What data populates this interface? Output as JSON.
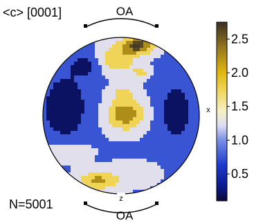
{
  "chart_data": {
    "type": "heatmap",
    "subtype": "pole-figure",
    "title": "<c> [0001]",
    "sample_size_label": "N=5001",
    "arc_labels": {
      "top": "OA",
      "bottom": "OA"
    },
    "axis_labels": {
      "x": "x",
      "z": "z"
    },
    "colorbar": {
      "ticks": [
        0.5,
        1.0,
        1.5,
        2.0,
        2.5
      ],
      "tick_labels": [
        "0.5",
        "1.0",
        "1.5",
        "2.0",
        "2.5"
      ],
      "range": [
        0.1,
        2.75
      ]
    },
    "clusters": [
      {
        "name": "top-right",
        "center": [
          0.22,
          0.9
        ],
        "radius": [
          0.22,
          0.11
        ],
        "peak": 2.7
      },
      {
        "name": "top-center",
        "center": [
          -0.05,
          0.72
        ],
        "radius": [
          0.25,
          0.18
        ],
        "peak": 1.9
      },
      {
        "name": "top-right-inner",
        "center": [
          0.25,
          0.55
        ],
        "radius": [
          0.1,
          0.08
        ],
        "peak": 1.7
      },
      {
        "name": "center",
        "center": [
          0.05,
          0.02
        ],
        "radius": [
          0.24,
          0.2
        ],
        "peak": 2.4
      },
      {
        "name": "upper-middle",
        "center": [
          0.02,
          0.3
        ],
        "radius": [
          0.16,
          0.08
        ],
        "peak": 1.5
      },
      {
        "name": "bottom-left",
        "center": [
          -0.3,
          -0.83
        ],
        "radius": [
          0.25,
          0.12
        ],
        "peak": 2.1
      },
      {
        "name": "bottom-center",
        "center": [
          0.15,
          -0.75
        ],
        "radius": [
          0.3,
          0.15
        ],
        "peak": 1.3
      },
      {
        "name": "left-edge-high",
        "center": [
          -0.7,
          -0.45
        ],
        "radius": [
          0.28,
          0.15
        ],
        "peak": 1.5
      },
      {
        "name": "low-left",
        "center": [
          -0.72,
          0.1
        ],
        "radius": [
          0.3,
          0.45
        ],
        "peak": 0.1
      },
      {
        "name": "low-right",
        "center": [
          0.7,
          0.05
        ],
        "radius": [
          0.22,
          0.4
        ],
        "peak": 0.2
      },
      {
        "name": "low-upper-left",
        "center": [
          -0.45,
          0.65
        ],
        "radius": [
          0.2,
          0.15
        ],
        "peak": 0.35
      }
    ],
    "background_level": 0.95,
    "contour_levels": [
      0.5,
      1.0,
      1.5,
      2.0,
      2.5
    ]
  }
}
